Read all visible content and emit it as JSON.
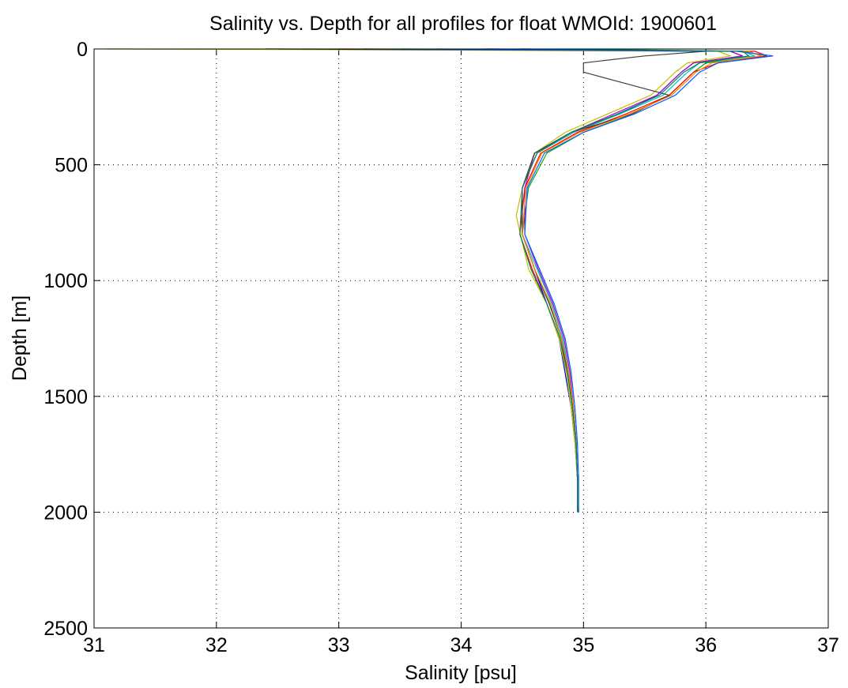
{
  "chart_data": {
    "type": "line",
    "title": "Salinity vs. Depth for all profiles for float WMOId: 1900601",
    "xlabel": "Salinity [psu]",
    "ylabel": "Depth [m]",
    "xlim": [
      31,
      37
    ],
    "ylim": [
      0,
      2500
    ],
    "y_reversed": true,
    "xticks": [
      31,
      32,
      33,
      34,
      35,
      36,
      37
    ],
    "yticks": [
      0,
      500,
      1000,
      1500,
      2000,
      2500
    ],
    "grid": true,
    "legend": "none",
    "series": [
      {
        "color": "#0000ff",
        "x": [
          32.4,
          34.5,
          36.2,
          36.3,
          35.9,
          35.8,
          35.6,
          35.3,
          34.9,
          34.6,
          34.5,
          34.5,
          34.6,
          34.7,
          34.8,
          34.85,
          34.9,
          34.93,
          34.95,
          34.95
        ],
        "y": [
          0,
          5,
          10,
          30,
          60,
          100,
          200,
          280,
          360,
          450,
          600,
          800,
          950,
          1100,
          1250,
          1400,
          1550,
          1700,
          1850,
          2000
        ]
      },
      {
        "color": "#00aa00",
        "x": [
          32.7,
          34.8,
          36.3,
          36.5,
          36.0,
          35.9,
          35.7,
          35.4,
          35.0,
          34.7,
          34.55,
          34.5,
          34.6,
          34.72,
          34.82,
          34.88,
          34.92,
          34.94,
          34.95,
          34.96
        ],
        "y": [
          0,
          5,
          10,
          30,
          60,
          100,
          200,
          280,
          360,
          450,
          600,
          800,
          950,
          1100,
          1250,
          1400,
          1550,
          1700,
          1850,
          2000
        ]
      },
      {
        "color": "#ff0000",
        "x": [
          33.0,
          35.0,
          36.4,
          36.5,
          36.1,
          35.9,
          35.7,
          35.35,
          34.95,
          34.65,
          34.52,
          34.48,
          34.58,
          34.7,
          34.8,
          34.87,
          34.91,
          34.94,
          34.95,
          34.96
        ],
        "y": [
          0,
          5,
          10,
          30,
          60,
          100,
          200,
          280,
          360,
          450,
          600,
          800,
          950,
          1100,
          1250,
          1400,
          1550,
          1700,
          1850,
          2000
        ]
      },
      {
        "color": "#00bfbf",
        "x": [
          33.5,
          35.2,
          36.3,
          36.4,
          35.95,
          35.85,
          35.65,
          35.3,
          34.92,
          34.62,
          34.5,
          34.5,
          34.62,
          34.74,
          34.83,
          34.88,
          34.92,
          34.94,
          34.95,
          34.95
        ],
        "y": [
          0,
          5,
          10,
          30,
          60,
          100,
          200,
          280,
          360,
          450,
          600,
          800,
          950,
          1100,
          1250,
          1400,
          1550,
          1700,
          1850,
          2000
        ]
      },
      {
        "color": "#bf00bf",
        "x": [
          34.2,
          35.5,
          36.2,
          36.3,
          35.9,
          35.8,
          35.6,
          35.25,
          34.9,
          34.6,
          34.52,
          34.52,
          34.63,
          34.75,
          34.84,
          34.89,
          34.92,
          34.94,
          34.95,
          34.96
        ],
        "y": [
          0,
          5,
          10,
          30,
          60,
          100,
          200,
          280,
          360,
          450,
          600,
          800,
          950,
          1100,
          1250,
          1400,
          1550,
          1700,
          1850,
          2000
        ]
      },
      {
        "color": "#bfbf00",
        "x": [
          31.1,
          34.0,
          36.1,
          36.2,
          35.85,
          35.75,
          35.55,
          35.2,
          34.85,
          34.6,
          34.5,
          34.45,
          34.55,
          34.7,
          34.8,
          34.86,
          34.9,
          34.93,
          34.95,
          34.95
        ],
        "y": [
          0,
          5,
          10,
          30,
          60,
          100,
          200,
          280,
          360,
          450,
          600,
          720,
          950,
          1100,
          1250,
          1400,
          1550,
          1700,
          1850,
          2000
        ]
      },
      {
        "color": "#404040",
        "x": [
          32.5,
          34.6,
          36.0,
          35.5,
          35.0,
          35.0,
          35.7,
          35.4,
          34.9,
          34.6,
          34.5,
          34.5,
          34.6,
          34.72,
          34.82,
          34.87,
          34.91,
          34.94,
          34.95,
          34.96
        ],
        "y": [
          0,
          5,
          10,
          30,
          60,
          100,
          200,
          280,
          360,
          450,
          600,
          800,
          950,
          1100,
          1250,
          1400,
          1550,
          1700,
          1850,
          2000
        ]
      },
      {
        "color": "#ff8000",
        "x": [
          33.8,
          35.3,
          36.35,
          36.45,
          36.05,
          35.92,
          35.72,
          35.38,
          34.97,
          34.66,
          34.53,
          34.5,
          34.6,
          34.73,
          34.82,
          34.88,
          34.92,
          34.94,
          34.95,
          34.96
        ],
        "y": [
          0,
          5,
          10,
          30,
          60,
          100,
          200,
          280,
          360,
          450,
          600,
          800,
          950,
          1100,
          1250,
          1400,
          1550,
          1700,
          1850,
          2000
        ]
      },
      {
        "color": "#0060ff",
        "x": [
          33.2,
          34.9,
          36.25,
          36.55,
          36.1,
          35.95,
          35.75,
          35.42,
          35.0,
          34.68,
          34.54,
          34.52,
          34.64,
          34.76,
          34.85,
          34.9,
          34.93,
          34.95,
          34.96,
          34.96
        ],
        "y": [
          0,
          5,
          10,
          30,
          60,
          100,
          200,
          280,
          360,
          450,
          600,
          800,
          950,
          1100,
          1250,
          1400,
          1550,
          1700,
          1850,
          2000
        ]
      },
      {
        "color": "#008060",
        "x": [
          34.5,
          35.6,
          36.3,
          36.35,
          35.95,
          35.82,
          35.62,
          35.28,
          34.9,
          34.62,
          34.5,
          34.48,
          34.57,
          34.7,
          34.81,
          34.87,
          34.91,
          34.94,
          34.95,
          34.95
        ],
        "y": [
          0,
          5,
          10,
          30,
          60,
          100,
          200,
          280,
          360,
          450,
          600,
          800,
          950,
          1100,
          1250,
          1400,
          1550,
          1700,
          1850,
          2000
        ]
      }
    ]
  }
}
